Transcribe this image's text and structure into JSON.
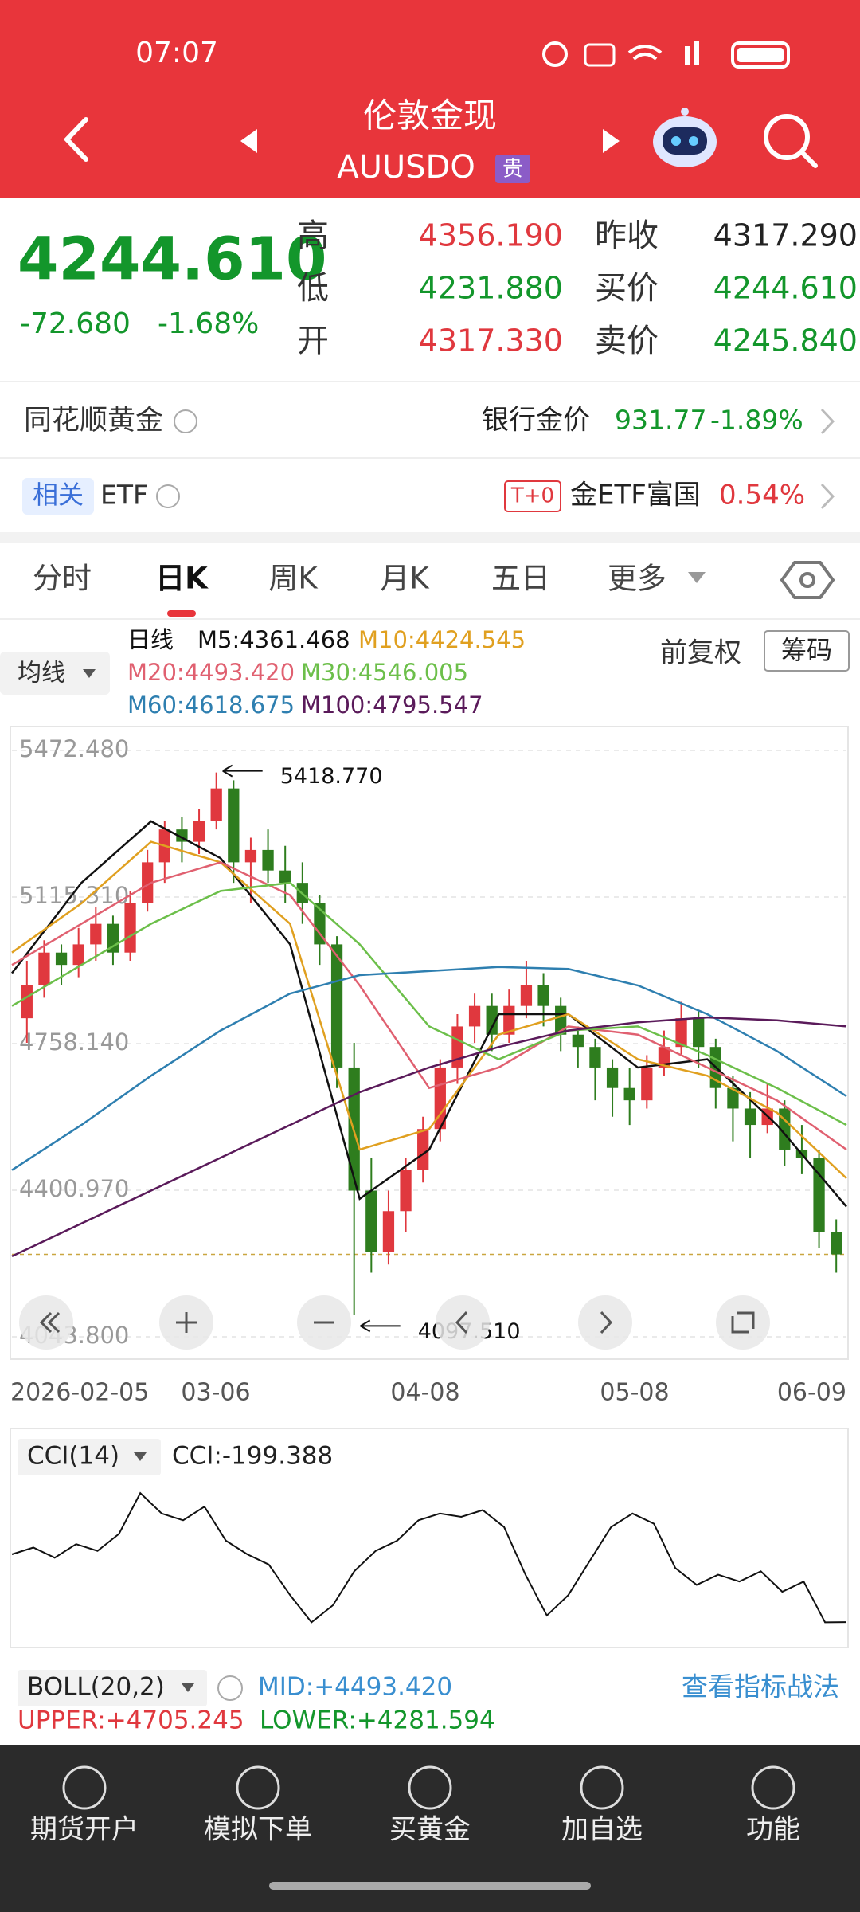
{
  "status_bar": {
    "time": "07:07"
  },
  "header": {
    "title": "伦敦金现",
    "symbol": "AUUSDO",
    "tag": "贵"
  },
  "quote": {
    "price": "4244.610",
    "change": "-72.680",
    "change_pct": "-1.68%",
    "fields": [
      {
        "label": "高",
        "value": "4356.190",
        "color": "#e0383e"
      },
      {
        "label": "低",
        "value": "4231.880",
        "color": "#13962b"
      },
      {
        "label": "开",
        "value": "4317.330",
        "color": "#e0383e"
      },
      {
        "label": "昨收",
        "value": "4317.290",
        "color": "#222222"
      },
      {
        "label": "买价",
        "value": "4244.610",
        "color": "#13962b"
      },
      {
        "label": "卖价",
        "value": "4245.840",
        "color": "#13962b"
      }
    ]
  },
  "ths_gold": {
    "title": "同花顺黄金",
    "bank_label": "银行金价",
    "bank_price": "931.77",
    "bank_change": "-1.89%"
  },
  "etf": {
    "tag": "相关",
    "title": "ETF",
    "t0": "T+0",
    "name": "金ETF富国",
    "change": "0.54%"
  },
  "tabs": [
    "分时",
    "日K",
    "周K",
    "月K",
    "五日",
    "更多"
  ],
  "kline": {
    "period": "日线",
    "ma_select": "均线",
    "adjust": "前复权",
    "chips": "筹码",
    "legend": [
      {
        "text": "M5:4361.468",
        "color": "#111111",
        "values": [
          4930,
          5150,
          5300,
          5210,
          5000,
          4380,
          4500,
          4830,
          4830,
          4700,
          4720,
          4560,
          4361
        ]
      },
      {
        "text": "M10:4424.545",
        "color": "#e0a020",
        "values": [
          4980,
          5100,
          5250,
          5200,
          5050,
          4500,
          4550,
          4780,
          4830,
          4720,
          4680,
          4590,
          4430
        ]
      },
      {
        "text": "M20:4493.420",
        "color": "#e06070",
        "values": [
          4950,
          5050,
          5150,
          5200,
          5120,
          4900,
          4650,
          4700,
          4800,
          4780,
          4700,
          4620,
          4500
        ]
      },
      {
        "text": "M30:4546.005",
        "color": "#6cbf4a",
        "values": [
          4850,
          4950,
          5050,
          5130,
          5150,
          5000,
          4800,
          4720,
          4790,
          4800,
          4730,
          4650,
          4560
        ]
      },
      {
        "text": "M60:4618.675",
        "color": "#2e7fb0",
        "values": [
          4450,
          4560,
          4680,
          4790,
          4880,
          4925,
          4935,
          4945,
          4940,
          4900,
          4830,
          4740,
          4630
        ]
      },
      {
        "text": "M100:4795.547",
        "color": "#5a1a5a",
        "values": [
          4240,
          4320,
          4400,
          4480,
          4560,
          4640,
          4700,
          4750,
          4790,
          4810,
          4822,
          4815,
          4800
        ]
      }
    ],
    "ylim": [
      4043.8,
      5472.48
    ],
    "yticks": [
      {
        "value": 5472.48,
        "label": "5472.480"
      },
      {
        "value": 5115.31,
        "label": "5115.310"
      },
      {
        "value": 4758.14,
        "label": "4758.140"
      },
      {
        "value": 4400.97,
        "label": "4400.970"
      },
      {
        "value": 4043.8,
        "label": "4043.800"
      }
    ],
    "dates": [
      "2026-02-05",
      "03-06",
      "04-08",
      "05-08",
      "06-09"
    ],
    "last_price": 4244.61,
    "max_note": {
      "value": 5418.77,
      "label": "5418.770"
    },
    "min_note": {
      "value": 4097.51,
      "label": "4097.510"
    },
    "ohlc": [
      [
        4820,
        4960,
        4760,
        4900
      ],
      [
        4900,
        5010,
        4870,
        4980
      ],
      [
        4980,
        5000,
        4900,
        4950
      ],
      [
        4950,
        5040,
        4920,
        5000
      ],
      [
        5000,
        5090,
        4960,
        5050
      ],
      [
        5050,
        5070,
        4950,
        4980
      ],
      [
        4980,
        5130,
        4960,
        5100
      ],
      [
        5100,
        5230,
        5080,
        5200
      ],
      [
        5200,
        5300,
        5150,
        5280
      ],
      [
        5280,
        5310,
        5200,
        5250
      ],
      [
        5250,
        5330,
        5220,
        5300
      ],
      [
        5300,
        5418.77,
        5280,
        5380
      ],
      [
        5380,
        5400,
        5150,
        5200
      ],
      [
        5200,
        5260,
        5100,
        5230
      ],
      [
        5230,
        5280,
        5150,
        5180
      ],
      [
        5180,
        5240,
        5100,
        5150
      ],
      [
        5150,
        5200,
        5050,
        5100
      ],
      [
        5100,
        5120,
        4950,
        5000
      ],
      [
        5000,
        5020,
        4650,
        4700
      ],
      [
        4700,
        4760,
        4097.51,
        4400
      ],
      [
        4400,
        4480,
        4200,
        4250
      ],
      [
        4250,
        4400,
        4220,
        4350
      ],
      [
        4350,
        4480,
        4300,
        4450
      ],
      [
        4450,
        4580,
        4420,
        4550
      ],
      [
        4550,
        4720,
        4520,
        4700
      ],
      [
        4700,
        4830,
        4660,
        4800
      ],
      [
        4800,
        4880,
        4760,
        4850
      ],
      [
        4850,
        4880,
        4740,
        4780
      ],
      [
        4780,
        4890,
        4760,
        4850
      ],
      [
        4850,
        4960,
        4820,
        4900
      ],
      [
        4900,
        4930,
        4800,
        4850
      ],
      [
        4850,
        4870,
        4740,
        4780
      ],
      [
        4780,
        4800,
        4700,
        4750
      ],
      [
        4750,
        4770,
        4620,
        4700
      ],
      [
        4700,
        4720,
        4580,
        4650
      ],
      [
        4650,
        4700,
        4560,
        4620
      ],
      [
        4620,
        4730,
        4600,
        4700
      ],
      [
        4700,
        4790,
        4680,
        4750
      ],
      [
        4750,
        4860,
        4730,
        4820
      ],
      [
        4820,
        4840,
        4700,
        4750
      ],
      [
        4750,
        4770,
        4600,
        4650
      ],
      [
        4650,
        4680,
        4520,
        4600
      ],
      [
        4600,
        4640,
        4480,
        4560
      ],
      [
        4560,
        4660,
        4540,
        4600
      ],
      [
        4600,
        4620,
        4460,
        4500
      ],
      [
        4500,
        4560,
        4440,
        4480
      ],
      [
        4480,
        4500,
        4260,
        4300
      ],
      [
        4300,
        4330,
        4200,
        4244.61
      ]
    ]
  },
  "cci": {
    "title": "CCI(14)",
    "readout": "CCI:-199.388",
    "ylim": [
      -260,
      260
    ],
    "values": [
      0,
      20,
      -10,
      30,
      10,
      60,
      180,
      120,
      100,
      140,
      40,
      0,
      -30,
      -120,
      -200,
      -150,
      -50,
      10,
      40,
      100,
      120,
      110,
      130,
      80,
      -60,
      -180,
      -120,
      -20,
      80,
      120,
      90,
      -40,
      -90,
      -60,
      -80,
      -50,
      -110,
      -80,
      -200,
      -199.388
    ]
  },
  "boll": {
    "title": "BOLL(20,2)",
    "mid": "MID:+4493.420",
    "link": "查看指标战法",
    "upper": "UPPER:+4705.245",
    "lower": "LOWER:+4281.594"
  },
  "nav": [
    "期货开户",
    "模拟下单",
    "买黄金",
    "加自选",
    "功能"
  ]
}
